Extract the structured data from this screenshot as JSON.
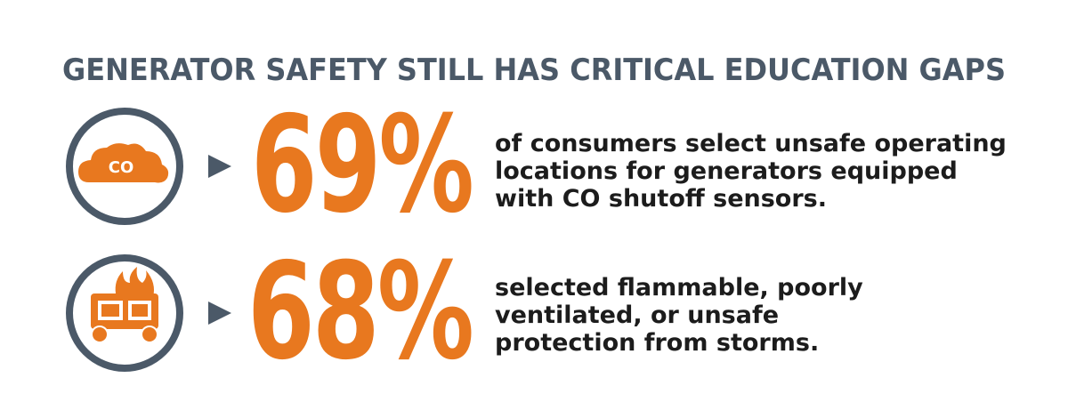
{
  "title": "GENERATOR SAFETY STILL HAS CRITICAL EDUCATION GAPS",
  "stats": [
    {
      "icon_label": "CO",
      "value": "69%",
      "lines": [
        "of consumers select unsafe operating",
        "locations for generators equipped",
        "with CO shutoff sensors."
      ]
    },
    {
      "value": "68%",
      "lines": [
        "selected flammable, poorly",
        "ventilated, or unsafe",
        "protection from storms."
      ]
    }
  ]
}
